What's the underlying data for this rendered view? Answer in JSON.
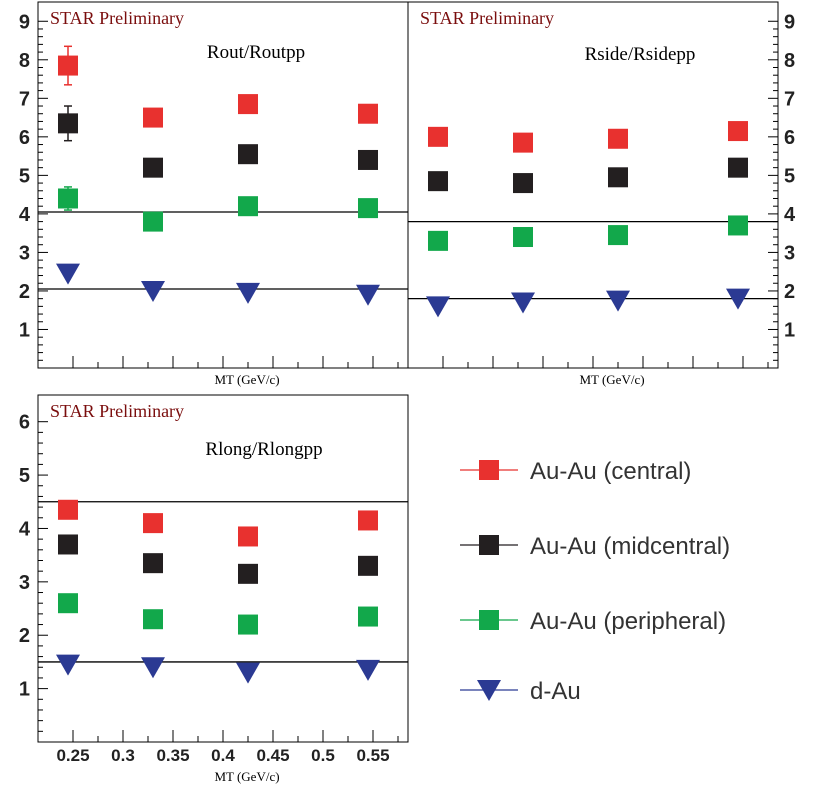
{
  "header": "STAR Preliminary",
  "colors": {
    "central": "#e8312f",
    "midcentral": "#231f20",
    "peripheral": "#12a84b",
    "dAu": "#2b3a93",
    "star_text": "#7a0d0d"
  },
  "legend": [
    {
      "label": "Au-Au (central)",
      "marker": "square",
      "color": "#e8312f"
    },
    {
      "label": "Au-Au (midcentral)",
      "marker": "square",
      "color": "#231f20"
    },
    {
      "label": "Au-Au (peripheral)",
      "marker": "square",
      "color": "#12a84b"
    },
    {
      "label": "d-Au",
      "marker": "triangle-down",
      "color": "#2b3a93"
    }
  ],
  "chart_data": [
    {
      "type": "scatter",
      "title": "Rout/Routpp",
      "header": "STAR Preliminary",
      "xlabel": "MT (GeV/c)",
      "xlim": [
        0.215,
        0.585
      ],
      "ylim": [
        0,
        9.5
      ],
      "yticks": [
        1,
        2,
        3,
        4,
        5,
        6,
        7,
        8,
        9
      ],
      "x": [
        0.245,
        0.33,
        0.425,
        0.545
      ],
      "reference_lines": [
        4.05,
        2.05
      ],
      "series": [
        {
          "name": "Au-Au (central)",
          "values": [
            7.85,
            6.5,
            6.85,
            6.6
          ],
          "errors": [
            0.5,
            null,
            null,
            null
          ]
        },
        {
          "name": "Au-Au (midcentral)",
          "values": [
            6.35,
            5.2,
            5.55,
            5.4
          ],
          "errors": [
            0.45,
            null,
            null,
            null
          ]
        },
        {
          "name": "Au-Au (peripheral)",
          "values": [
            4.4,
            3.8,
            4.2,
            4.15
          ],
          "errors": [
            0.3,
            null,
            null,
            null
          ]
        },
        {
          "name": "d-Au",
          "values": [
            2.45,
            2.0,
            1.95,
            1.9
          ],
          "errors": [
            null,
            null,
            null,
            null
          ]
        }
      ]
    },
    {
      "type": "scatter",
      "title": "Rside/Rsidepp",
      "header": "STAR Preliminary",
      "xlabel": "MT (GeV/c)",
      "xlim": [
        0.215,
        0.585
      ],
      "ylim": [
        0,
        9.5
      ],
      "yticks": [
        1,
        2,
        3,
        4,
        5,
        6,
        7,
        8,
        9
      ],
      "x": [
        0.245,
        0.33,
        0.425,
        0.545
      ],
      "reference_lines": [
        3.8,
        1.8
      ],
      "series": [
        {
          "name": "Au-Au (central)",
          "values": [
            6.0,
            5.85,
            5.95,
            6.15
          ],
          "errors": [
            null,
            null,
            null,
            null
          ]
        },
        {
          "name": "Au-Au (midcentral)",
          "values": [
            4.85,
            4.8,
            4.95,
            5.2
          ],
          "errors": [
            null,
            null,
            null,
            null
          ]
        },
        {
          "name": "Au-Au (peripheral)",
          "values": [
            3.3,
            3.4,
            3.45,
            3.7
          ],
          "errors": [
            null,
            null,
            null,
            null
          ]
        },
        {
          "name": "d-Au",
          "values": [
            1.6,
            1.7,
            1.75,
            1.8
          ],
          "errors": [
            null,
            null,
            null,
            null
          ]
        }
      ]
    },
    {
      "type": "scatter",
      "title": "Rlong/Rlongpp",
      "header": "STAR Preliminary",
      "xlabel": "MT (GeV/c)",
      "xlim": [
        0.215,
        0.585
      ],
      "ylim": [
        0,
        6.5
      ],
      "yticks": [
        1,
        2,
        3,
        4,
        5,
        6
      ],
      "xticks": [
        0.25,
        0.3,
        0.35,
        0.4,
        0.45,
        0.5,
        0.55
      ],
      "xtick_labels": [
        "0.25",
        "0.3",
        "0.35",
        "0.4",
        "0.45",
        "0.5",
        "0.55"
      ],
      "x": [
        0.245,
        0.33,
        0.425,
        0.545
      ],
      "reference_lines": [
        4.5,
        1.5
      ],
      "series": [
        {
          "name": "Au-Au (central)",
          "values": [
            4.35,
            4.1,
            3.85,
            4.15
          ],
          "errors": [
            null,
            null,
            null,
            null
          ]
        },
        {
          "name": "Au-Au (midcentral)",
          "values": [
            3.7,
            3.35,
            3.15,
            3.3
          ],
          "errors": [
            null,
            null,
            null,
            null
          ]
        },
        {
          "name": "Au-Au (peripheral)",
          "values": [
            2.6,
            2.3,
            2.2,
            2.35
          ],
          "errors": [
            null,
            null,
            null,
            null
          ]
        },
        {
          "name": "d-Au",
          "values": [
            1.45,
            1.4,
            1.3,
            1.35
          ],
          "errors": [
            null,
            null,
            null,
            null
          ]
        }
      ]
    }
  ]
}
